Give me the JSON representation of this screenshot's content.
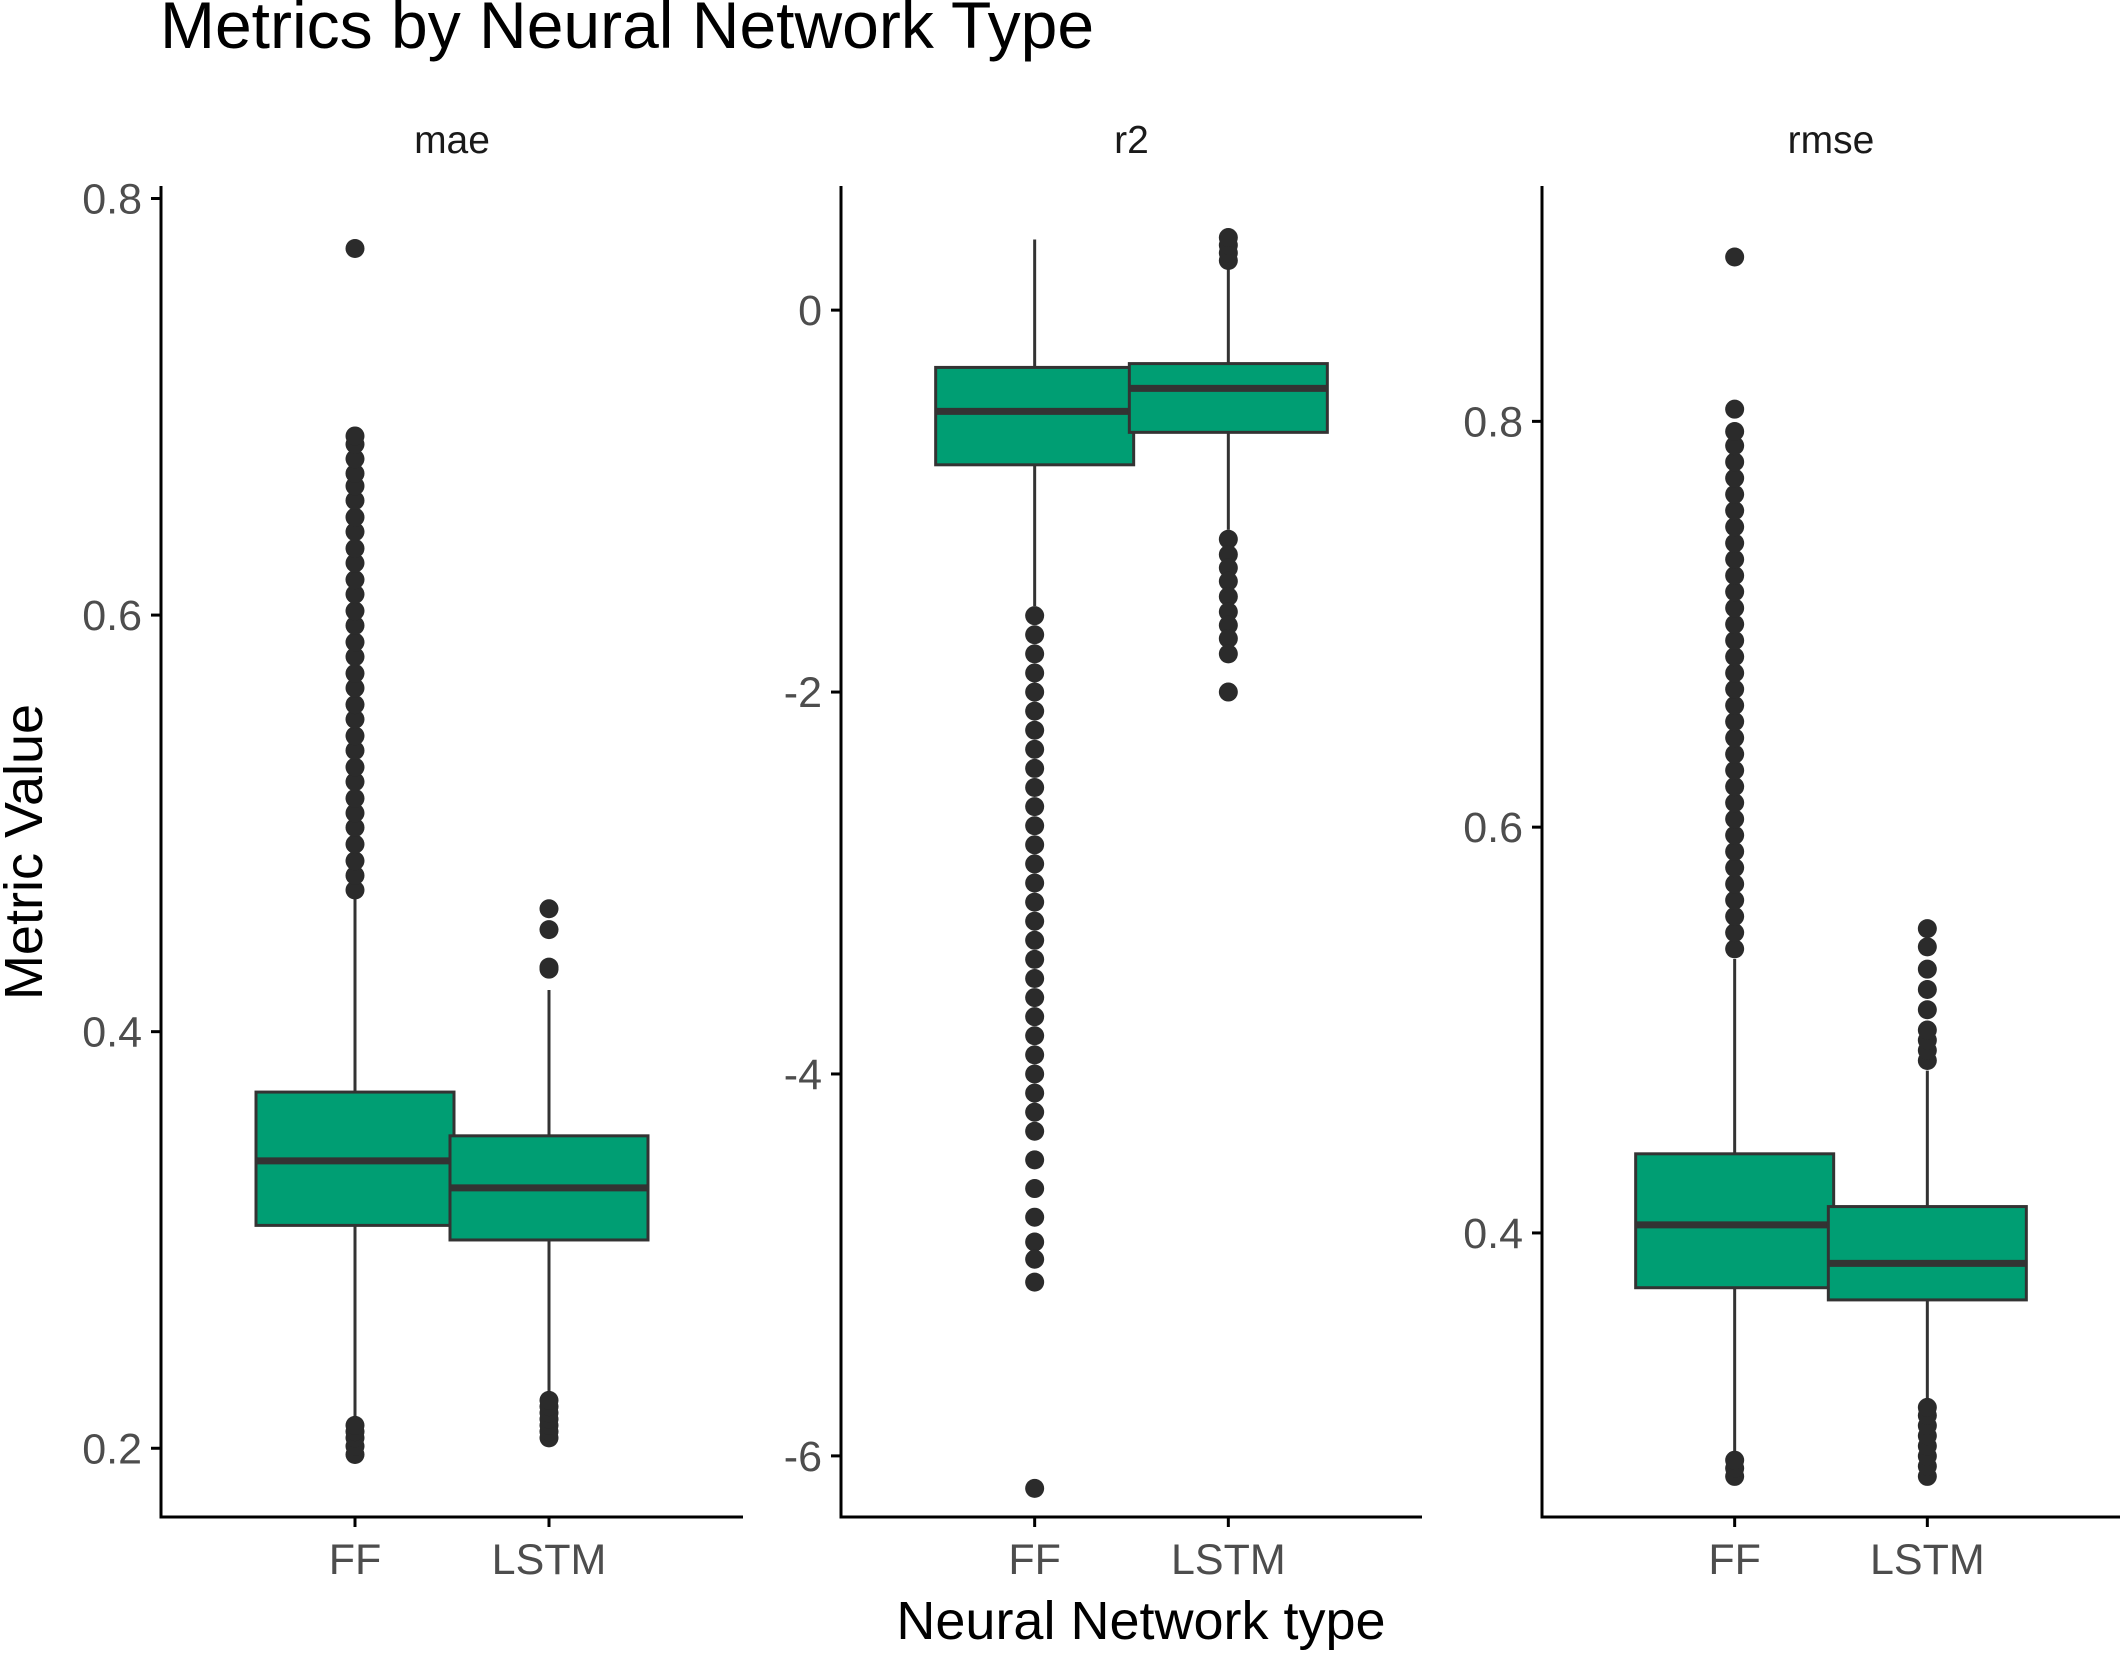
{
  "chart_data": {
    "type": "boxplot",
    "title": "Metrics by Neural Network Type",
    "xlabel": "Neural Network type",
    "ylabel": "Metric Value",
    "categories": [
      "FF",
      "LSTM"
    ],
    "grid": false,
    "legend": "none",
    "colors": {
      "box_fill": "#009E73",
      "box_line": "#333333",
      "outlier": "#2b2b2b",
      "axis": "#000000"
    },
    "panels": [
      {
        "label": "mae",
        "ylim": [
          0.167,
          0.806
        ],
        "yticks": [
          0.2,
          0.4,
          0.6,
          0.8
        ],
        "tick_labels": [
          "0.2",
          "0.4",
          "0.6",
          "0.8"
        ],
        "boxes": [
          {
            "category": "FF",
            "whisker_low": 0.211,
            "q1": 0.307,
            "median": 0.338,
            "q3": 0.371,
            "whisker_high": 0.466,
            "outliers": [
              0.197,
              0.201,
              0.205,
              0.208,
              0.211,
              0.468,
              0.475,
              0.482,
              0.49,
              0.498,
              0.505,
              0.512,
              0.52,
              0.527,
              0.535,
              0.542,
              0.55,
              0.557,
              0.565,
              0.572,
              0.58,
              0.587,
              0.595,
              0.602,
              0.61,
              0.617,
              0.625,
              0.632,
              0.64,
              0.647,
              0.655,
              0.662,
              0.668,
              0.675,
              0.682,
              0.686,
              0.776
            ]
          },
          {
            "category": "LSTM",
            "whisker_low": 0.225,
            "q1": 0.3,
            "median": 0.325,
            "q3": 0.35,
            "whisker_high": 0.42,
            "outliers": [
              0.205,
              0.208,
              0.211,
              0.214,
              0.217,
              0.22,
              0.223,
              0.43,
              0.431,
              0.449,
              0.459
            ]
          }
        ]
      },
      {
        "label": "r2",
        "ylim": [
          -6.32,
          0.65
        ],
        "yticks": [
          -6,
          -4,
          -2,
          0
        ],
        "tick_labels": [
          "-6",
          "-4",
          "-2",
          "0"
        ],
        "boxes": [
          {
            "category": "FF",
            "whisker_low": -1.55,
            "q1": -0.81,
            "median": -0.53,
            "q3": -0.3,
            "whisker_high": 0.37,
            "outliers": [
              -1.6,
              -1.7,
              -1.8,
              -1.9,
              -2.0,
              -2.1,
              -2.2,
              -2.3,
              -2.4,
              -2.5,
              -2.6,
              -2.7,
              -2.8,
              -2.9,
              -3.0,
              -3.1,
              -3.2,
              -3.3,
              -3.4,
              -3.5,
              -3.6,
              -3.7,
              -3.8,
              -3.9,
              -4.0,
              -4.1,
              -4.2,
              -4.3,
              -4.45,
              -4.6,
              -4.75,
              -4.88,
              -4.97,
              -5.09,
              -6.17
            ]
          },
          {
            "category": "LSTM",
            "whisker_low": -1.15,
            "q1": -0.64,
            "median": -0.41,
            "q3": -0.28,
            "whisker_high": 0.24,
            "outliers": [
              0.26,
              0.3,
              0.34,
              0.38,
              -1.2,
              -1.28,
              -1.35,
              -1.42,
              -1.5,
              -1.58,
              -1.65,
              -1.72,
              -1.8,
              -2.0
            ]
          }
        ]
      },
      {
        "label": "rmse",
        "ylim": [
          0.26,
          0.916
        ],
        "yticks": [
          0.4,
          0.6,
          0.8
        ],
        "tick_labels": [
          "0.4",
          "0.6",
          "0.8"
        ],
        "boxes": [
          {
            "category": "FF",
            "whisker_low": 0.285,
            "q1": 0.373,
            "median": 0.404,
            "q3": 0.439,
            "whisker_high": 0.535,
            "outliers": [
              0.28,
              0.284,
              0.288,
              0.54,
              0.548,
              0.556,
              0.564,
              0.572,
              0.58,
              0.588,
              0.596,
              0.604,
              0.612,
              0.62,
              0.628,
              0.636,
              0.644,
              0.652,
              0.66,
              0.668,
              0.676,
              0.684,
              0.692,
              0.7,
              0.708,
              0.716,
              0.724,
              0.732,
              0.74,
              0.748,
              0.756,
              0.764,
              0.772,
              0.78,
              0.788,
              0.795,
              0.806,
              0.881
            ]
          },
          {
            "category": "LSTM",
            "whisker_low": 0.314,
            "q1": 0.367,
            "median": 0.385,
            "q3": 0.413,
            "whisker_high": 0.48,
            "outliers": [
              0.28,
              0.285,
              0.29,
              0.295,
              0.3,
              0.305,
              0.31,
              0.314,
              0.485,
              0.49,
              0.495,
              0.5,
              0.51,
              0.52,
              0.53,
              0.541,
              0.55
            ]
          }
        ]
      }
    ]
  }
}
